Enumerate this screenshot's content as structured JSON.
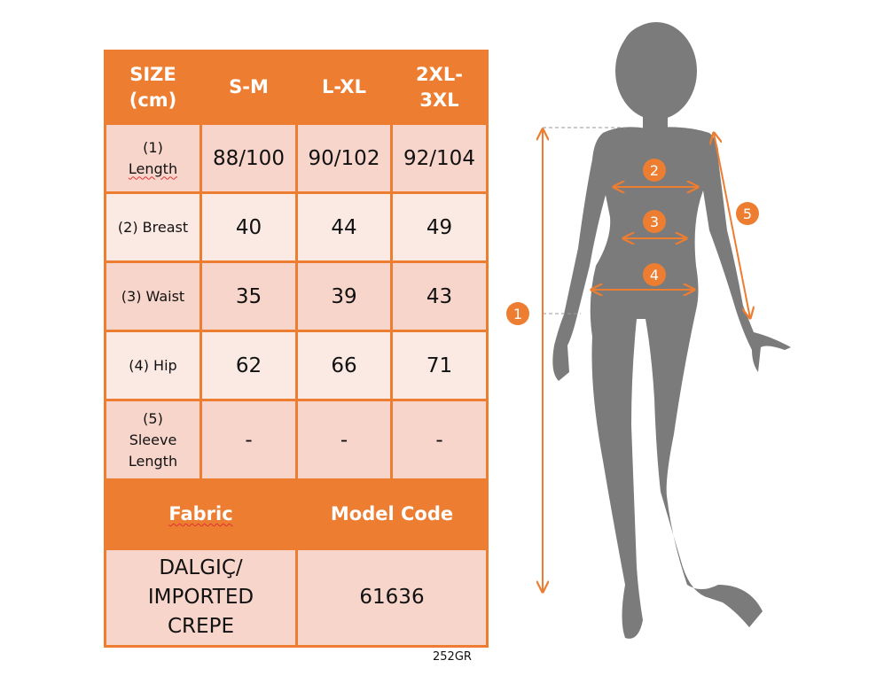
{
  "colors": {
    "accent": "#ED7D31",
    "cell_dark": "#F8D5CA",
    "cell_light": "#FBEAE4",
    "silhouette": "#7B7B7B"
  },
  "table": {
    "header": [
      "SIZE (cm)",
      "S-M",
      "L-XL",
      "2XL-3XL"
    ],
    "header_lines": {
      "size": [
        "SIZE",
        "(cm)"
      ],
      "xxl": [
        "2XL-",
        "3XL"
      ]
    },
    "rows": [
      {
        "label_lines": [
          "(1)",
          "Length"
        ],
        "values": [
          "88/100",
          "90/102",
          "92/104"
        ]
      },
      {
        "label": "(2) Breast",
        "values": [
          "40",
          "44",
          "49"
        ]
      },
      {
        "label": "(3) Waist",
        "values": [
          "35",
          "39",
          "43"
        ]
      },
      {
        "label": "(4) Hip",
        "values": [
          "62",
          "66",
          "71"
        ]
      },
      {
        "label_lines": [
          "(5)",
          "Sleeve",
          "Length"
        ],
        "values": [
          "-",
          "-",
          "-"
        ]
      }
    ],
    "footer_header": {
      "fabric": "Fabric",
      "model_code": "Model Code"
    },
    "fabric_lines": [
      "DALGIÇ/",
      "IMPORTED",
      "CREPE"
    ],
    "model_code": "61636"
  },
  "figure": {
    "markers": [
      "1",
      "2",
      "3",
      "4",
      "5"
    ]
  },
  "product_code": "252GR"
}
